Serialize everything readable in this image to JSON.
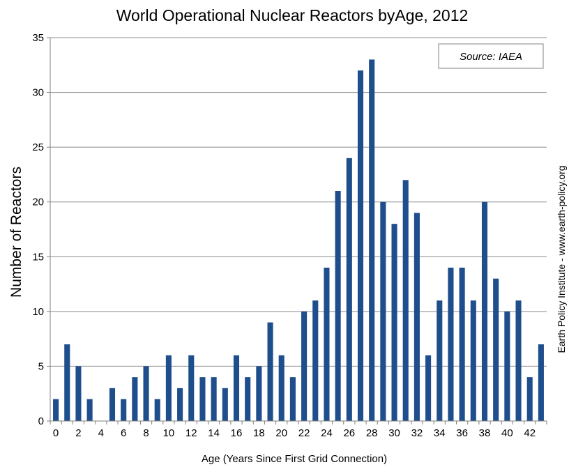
{
  "chart_data": {
    "type": "bar",
    "title": "World Operational Nuclear Reactors byAge, 2012",
    "xlabel": "Age (Years Since First Grid Connection)",
    "ylabel": "Number of Reactors",
    "ylim": [
      0,
      35
    ],
    "yticks": [
      0,
      5,
      10,
      15,
      20,
      25,
      30,
      35
    ],
    "xticks": [
      0,
      2,
      4,
      6,
      8,
      10,
      12,
      14,
      16,
      18,
      20,
      22,
      24,
      26,
      28,
      30,
      32,
      34,
      36,
      38,
      40,
      42
    ],
    "grid": true,
    "bar_color": "#1f4e8c",
    "categories": [
      0,
      1,
      2,
      3,
      4,
      5,
      6,
      7,
      8,
      9,
      10,
      11,
      12,
      13,
      14,
      15,
      16,
      17,
      18,
      19,
      20,
      21,
      22,
      23,
      24,
      25,
      26,
      27,
      28,
      29,
      30,
      31,
      32,
      33,
      34,
      35,
      36,
      37,
      38,
      39,
      40,
      41,
      42,
      43
    ],
    "values": [
      2,
      7,
      5,
      2,
      0,
      3,
      2,
      4,
      5,
      2,
      6,
      3,
      6,
      4,
      4,
      3,
      6,
      4,
      5,
      9,
      6,
      4,
      10,
      11,
      14,
      21,
      24,
      32,
      33,
      20,
      18,
      22,
      19,
      6,
      11,
      14,
      14,
      11,
      20,
      13,
      10,
      11,
      4,
      7
    ],
    "source_note": "Source: IAEA",
    "credit": "Earth Policy Institute - www.earth-policy.org"
  }
}
